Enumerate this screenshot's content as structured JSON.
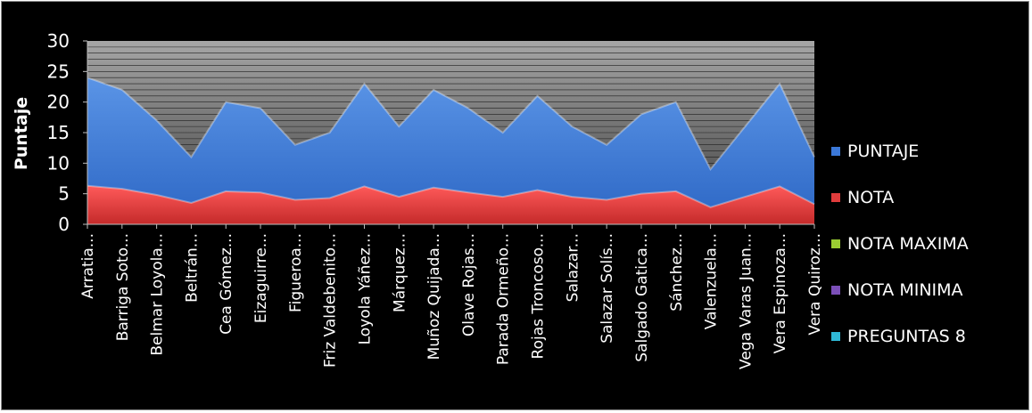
{
  "chart_data": {
    "type": "area",
    "ylabel": "Puntaje",
    "xlabel": "",
    "ylim": [
      0,
      30
    ],
    "yticks": [
      "0",
      "5",
      "10",
      "15",
      "20",
      "25",
      "30"
    ],
    "grid": true,
    "legend_position": "right",
    "categories": [
      "Arratia...",
      "Barriga Soto...",
      "Belmar Loyola...",
      "Beltrán...",
      "Cea Gómez...",
      "Eizaguirre...",
      "Figueroa...",
      "Friz Valdebenito...",
      "Loyola Yáñez...",
      "Márquez...",
      "Muñoz Quijada...",
      "Olave Rojas...",
      "Parada Ormeño...",
      "Rojas Troncoso...",
      "Salazar...",
      "Salazar Solís...",
      "Salgado Gatica...",
      "Sánchez...",
      "Valenzuela...",
      "Vega Varas Juan...",
      "Vera Espinoza...",
      "Vera Quiroz..."
    ],
    "series": [
      {
        "name": "PUNTAJE",
        "color": "#3b78d8",
        "values": [
          24,
          22,
          17,
          11,
          20,
          19,
          13,
          15,
          23,
          16,
          22,
          19,
          15,
          21,
          16,
          13,
          18,
          20,
          9,
          16,
          23,
          11
        ]
      },
      {
        "name": "NOTA",
        "color": "#e03c3c",
        "values": [
          6.3,
          5.8,
          4.8,
          3.5,
          5.4,
          5.2,
          4.0,
          4.3,
          6.2,
          4.5,
          6.0,
          5.2,
          4.5,
          5.6,
          4.5,
          4.0,
          5.0,
          5.4,
          2.8,
          4.5,
          6.2,
          3.3
        ]
      },
      {
        "name": "NOTA MAXIMA",
        "color": "#9acd32"
      },
      {
        "name": "NOTA MINIMA",
        "color": "#7b4fb8"
      },
      {
        "name": "PREGUNTAS 8",
        "color": "#2fb8d6"
      }
    ]
  }
}
